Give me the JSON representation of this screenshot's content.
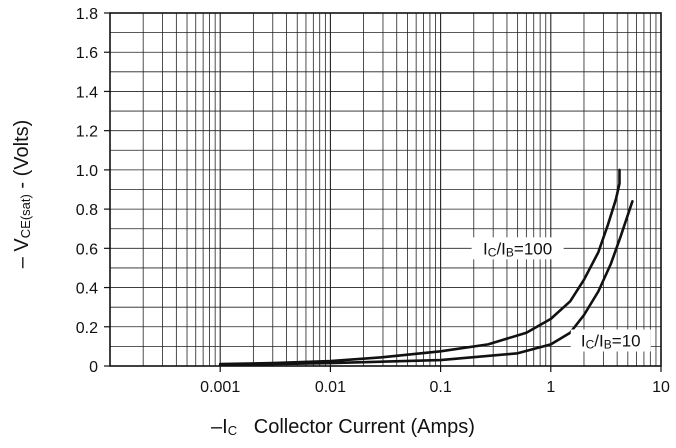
{
  "chart_data": {
    "type": "line",
    "title": "",
    "xscale": "log",
    "xlim": [
      0.0001,
      10
    ],
    "ylim": [
      0,
      1.8
    ],
    "grid": true,
    "legend": "none",
    "ylabel": {
      "prefix": "– V",
      "sub": "CE(sat)",
      "suffix": " - (Volts)"
    },
    "xlabel": {
      "prefix": "–I",
      "sub": "C",
      "suffix": "   Collector Current (Amps)"
    },
    "x_ticks": [
      {
        "value": 0.001,
        "label": "0.001"
      },
      {
        "value": 0.01,
        "label": "0.01"
      },
      {
        "value": 0.1,
        "label": "0.1"
      },
      {
        "value": 1,
        "label": "1"
      },
      {
        "value": 10,
        "label": "10"
      }
    ],
    "y_ticks": [
      {
        "value": 0,
        "label": "0"
      },
      {
        "value": 0.2,
        "label": "0.2"
      },
      {
        "value": 0.4,
        "label": "0.4"
      },
      {
        "value": 0.6,
        "label": "0.6"
      },
      {
        "value": 0.8,
        "label": "0.8"
      },
      {
        "value": 1.0,
        "label": "1.0"
      },
      {
        "value": 1.2,
        "label": "1.2"
      },
      {
        "value": 1.4,
        "label": "1.4"
      },
      {
        "value": 1.6,
        "label": "1.6"
      },
      {
        "value": 1.8,
        "label": "1.8"
      }
    ],
    "series": [
      {
        "label": {
          "prefix": "I",
          "sub1": "C",
          "mid": "/I",
          "sub2": "B",
          "suffix": "=100"
        },
        "points": [
          [
            0.001,
            0.01
          ],
          [
            0.003,
            0.015
          ],
          [
            0.01,
            0.025
          ],
          [
            0.03,
            0.045
          ],
          [
            0.1,
            0.075
          ],
          [
            0.27,
            0.11
          ],
          [
            0.6,
            0.17
          ],
          [
            1.0,
            0.24
          ],
          [
            1.5,
            0.33
          ],
          [
            2.0,
            0.44
          ],
          [
            2.7,
            0.58
          ],
          [
            3.3,
            0.72
          ],
          [
            3.9,
            0.85
          ],
          [
            4.2,
            0.93
          ],
          [
            4.2,
            1.0
          ]
        ]
      },
      {
        "label": {
          "prefix": "I",
          "sub1": "C",
          "mid": "/I",
          "sub2": "B",
          "suffix": "=10"
        },
        "points": [
          [
            0.001,
            0.005
          ],
          [
            0.01,
            0.015
          ],
          [
            0.1,
            0.03
          ],
          [
            0.5,
            0.065
          ],
          [
            1.0,
            0.11
          ],
          [
            1.5,
            0.17
          ],
          [
            2.0,
            0.26
          ],
          [
            2.7,
            0.38
          ],
          [
            3.5,
            0.52
          ],
          [
            4.3,
            0.66
          ],
          [
            5.5,
            0.84
          ]
        ]
      }
    ],
    "annotations": [
      {
        "series": 0,
        "at": [
          0.5,
          0.6
        ]
      },
      {
        "series": 1,
        "at": [
          3.5,
          0.13
        ]
      }
    ]
  }
}
